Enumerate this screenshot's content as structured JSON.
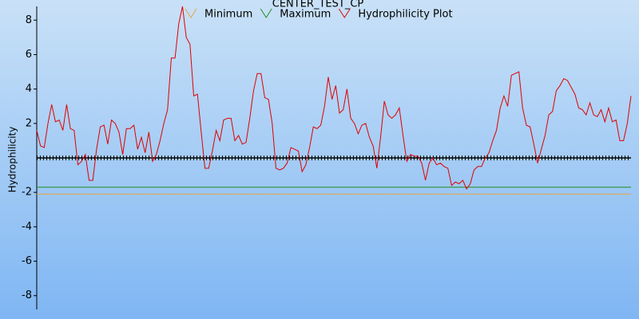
{
  "chart_data": {
    "type": "line",
    "title": "CENTER_TEST_CP",
    "y_label": "Hydrophilicity",
    "ylim": [
      -8.8,
      8.8
    ],
    "yticks": [
      -8,
      -6,
      -4,
      -2,
      2,
      4,
      6,
      8
    ],
    "reference_lines": [
      {
        "name": "Minimum",
        "color": "#e8a33c",
        "value": -2.1
      },
      {
        "name": "Maximum",
        "color": "#1e8c1e",
        "value": -1.7
      }
    ],
    "series": [
      {
        "name": "Hydrophilicity Plot",
        "color": "#e00000",
        "values": [
          1.6,
          0.7,
          0.6,
          2.0,
          3.1,
          2.1,
          2.2,
          1.6,
          3.1,
          1.7,
          1.6,
          -0.4,
          -0.2,
          0.2,
          -1.3,
          -1.3,
          0.5,
          1.8,
          1.9,
          0.8,
          2.2,
          2.0,
          1.5,
          0.2,
          1.7,
          1.7,
          1.9,
          0.5,
          1.2,
          0.3,
          1.5,
          -0.2,
          0.2,
          1.0,
          2.0,
          2.8,
          5.8,
          5.8,
          7.8,
          8.8,
          7.0,
          6.6,
          3.6,
          3.7,
          1.5,
          -0.6,
          -0.6,
          0.4,
          1.6,
          1.0,
          2.2,
          2.3,
          2.3,
          1.0,
          1.3,
          0.8,
          0.9,
          2.3,
          3.9,
          4.9,
          4.9,
          3.5,
          3.4,
          2.0,
          -0.6,
          -0.7,
          -0.6,
          -0.3,
          0.6,
          0.5,
          0.4,
          -0.8,
          -0.4,
          0.6,
          1.8,
          1.7,
          1.9,
          3.0,
          4.7,
          3.4,
          4.2,
          2.6,
          2.8,
          4.0,
          2.3,
          2.0,
          1.4,
          1.9,
          2.0,
          1.2,
          0.7,
          -0.6,
          1.2,
          3.3,
          2.5,
          2.3,
          2.5,
          2.9,
          1.3,
          -0.2,
          0.2,
          0.1,
          0.1,
          -0.3,
          -1.3,
          -0.3,
          0.0,
          -0.4,
          -0.3,
          -0.5,
          -0.6,
          -1.6,
          -1.4,
          -1.5,
          -1.3,
          -1.8,
          -1.5,
          -0.7,
          -0.5,
          -0.5,
          0.0,
          0.3,
          1.0,
          1.6,
          2.9,
          3.6,
          3.0,
          4.8,
          4.9,
          5.0,
          2.9,
          1.9,
          1.8,
          0.8,
          -0.3,
          0.5,
          1.3,
          2.5,
          2.7,
          3.9,
          4.2,
          4.6,
          4.5,
          4.1,
          3.7,
          2.9,
          2.8,
          2.5,
          3.2,
          2.5,
          2.4,
          2.8,
          2.1,
          2.9,
          2.1,
          2.2,
          1.0,
          1.0,
          2.0,
          3.6
        ]
      }
    ]
  }
}
